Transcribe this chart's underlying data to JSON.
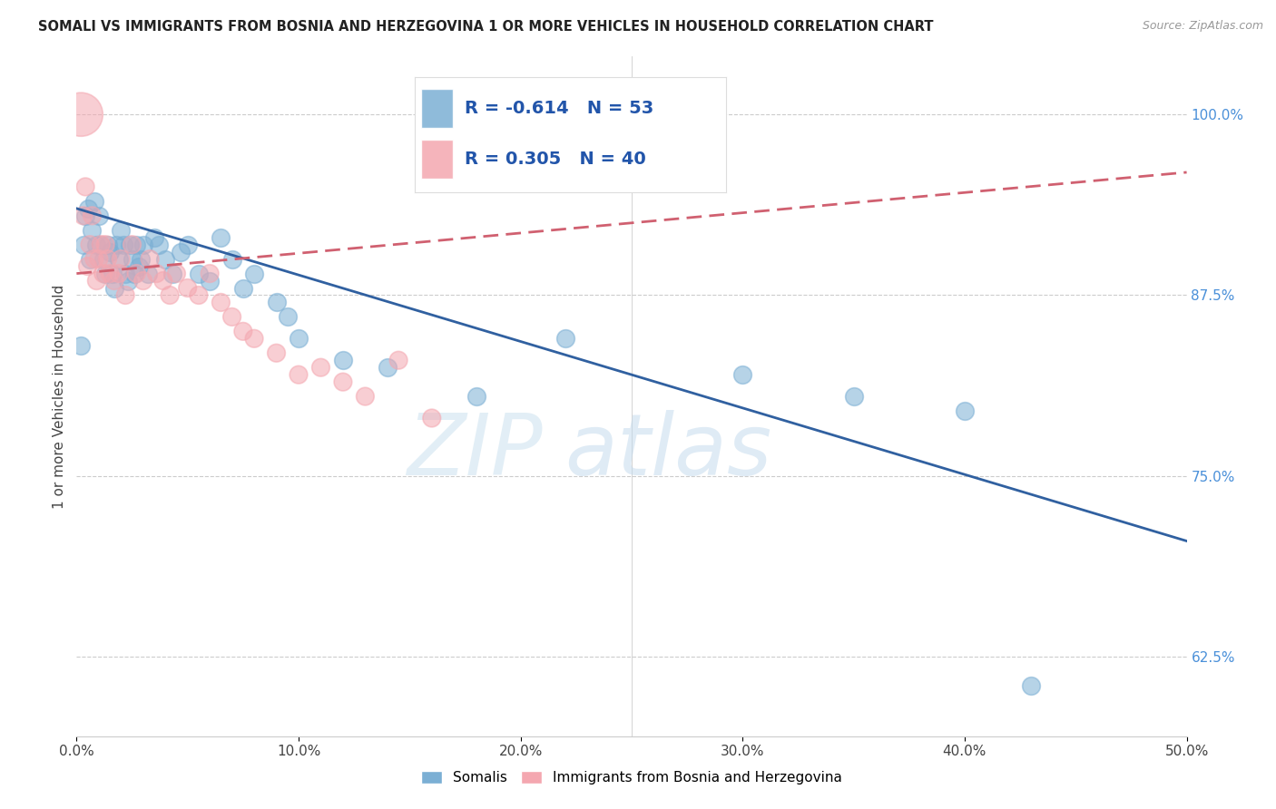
{
  "title": "SOMALI VS IMMIGRANTS FROM BOSNIA AND HERZEGOVINA 1 OR MORE VEHICLES IN HOUSEHOLD CORRELATION CHART",
  "source": "Source: ZipAtlas.com",
  "ylabel": "1 or more Vehicles in Household",
  "xlim": [
    0.0,
    50.0
  ],
  "ylim": [
    57.0,
    104.0
  ],
  "yticks": [
    62.5,
    75.0,
    87.5,
    100.0
  ],
  "xticks": [
    0.0,
    10.0,
    20.0,
    30.0,
    40.0,
    50.0
  ],
  "blue_R": -0.614,
  "blue_N": 53,
  "pink_R": 0.305,
  "pink_N": 40,
  "blue_color": "#7bafd4",
  "pink_color": "#f4a7b0",
  "blue_line_color": "#3060a0",
  "pink_line_color": "#d06070",
  "legend_label_blue": "Somalis",
  "legend_label_pink": "Immigrants from Bosnia and Herzegovina",
  "watermark_zip": "ZIP",
  "watermark_atlas": "atlas",
  "blue_x": [
    0.2,
    0.3,
    0.4,
    0.5,
    0.6,
    0.7,
    0.8,
    0.9,
    1.0,
    1.1,
    1.2,
    1.3,
    1.4,
    1.5,
    1.6,
    1.7,
    1.8,
    1.9,
    2.0,
    2.1,
    2.2,
    2.3,
    2.4,
    2.5,
    2.6,
    2.7,
    2.8,
    2.9,
    3.0,
    3.2,
    3.5,
    3.7,
    4.0,
    4.3,
    4.7,
    5.0,
    5.5,
    6.0,
    6.5,
    7.0,
    7.5,
    8.0,
    9.0,
    9.5,
    10.0,
    12.0,
    14.0,
    18.0,
    22.0,
    30.0,
    35.0,
    40.0,
    43.0
  ],
  "blue_y": [
    84.0,
    91.0,
    93.0,
    93.5,
    90.0,
    92.0,
    94.0,
    91.0,
    93.0,
    91.0,
    90.0,
    89.0,
    91.0,
    90.5,
    89.0,
    88.0,
    91.0,
    90.0,
    92.0,
    91.0,
    89.0,
    88.5,
    91.0,
    90.0,
    89.0,
    91.0,
    89.5,
    90.0,
    91.0,
    89.0,
    91.5,
    91.0,
    90.0,
    89.0,
    90.5,
    91.0,
    89.0,
    88.5,
    91.5,
    90.0,
    88.0,
    89.0,
    87.0,
    86.0,
    84.5,
    83.0,
    82.5,
    80.5,
    84.5,
    82.0,
    80.5,
    79.5,
    60.5
  ],
  "pink_x": [
    0.2,
    0.3,
    0.4,
    0.5,
    0.6,
    0.7,
    0.8,
    0.9,
    1.0,
    1.1,
    1.2,
    1.3,
    1.4,
    1.5,
    1.7,
    1.9,
    2.0,
    2.2,
    2.5,
    2.7,
    3.0,
    3.3,
    3.6,
    3.9,
    4.2,
    4.5,
    5.0,
    5.5,
    6.0,
    6.5,
    7.0,
    7.5,
    8.0,
    9.0,
    10.0,
    11.0,
    12.0,
    13.0,
    14.5,
    16.0
  ],
  "pink_y": [
    100.0,
    93.0,
    95.0,
    89.5,
    91.0,
    93.0,
    90.0,
    88.5,
    90.0,
    91.0,
    89.0,
    91.0,
    90.0,
    89.0,
    88.5,
    89.0,
    90.0,
    87.5,
    91.0,
    89.0,
    88.5,
    90.0,
    89.0,
    88.5,
    87.5,
    89.0,
    88.0,
    87.5,
    89.0,
    87.0,
    86.0,
    85.0,
    84.5,
    83.5,
    82.0,
    82.5,
    81.5,
    80.5,
    83.0,
    79.0
  ],
  "blue_line_x": [
    0.0,
    50.0
  ],
  "blue_line_y": [
    93.5,
    70.5
  ],
  "pink_line_x": [
    0.0,
    50.0
  ],
  "pink_line_y": [
    89.0,
    96.0
  ],
  "blue_dot_size": 200,
  "pink_dot_size": 200,
  "pink_large_size": 1200
}
